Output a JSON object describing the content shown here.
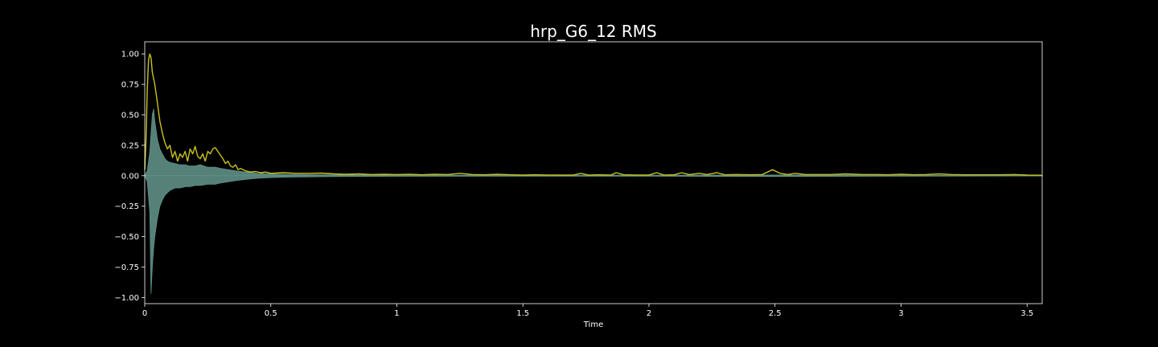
{
  "chart_data": {
    "type": "line",
    "title": "hrp_G6_12 RMS",
    "xlabel": "Time",
    "ylabel": "",
    "xlim": [
      0,
      3.56
    ],
    "ylim": [
      -1.05,
      1.1
    ],
    "x_ticks": [
      {
        "value": 0,
        "label": "0"
      },
      {
        "value": 0.5,
        "label": "0.5"
      },
      {
        "value": 1,
        "label": "1"
      },
      {
        "value": 1.5,
        "label": "1.5"
      },
      {
        "value": 2,
        "label": "2"
      },
      {
        "value": 2.5,
        "label": "2.5"
      },
      {
        "value": 3,
        "label": "3"
      },
      {
        "value": 3.5,
        "label": "3.5"
      }
    ],
    "y_ticks": [
      {
        "value": 1.0,
        "label": "1.00"
      },
      {
        "value": 0.75,
        "label": "0.75"
      },
      {
        "value": 0.5,
        "label": "0.50"
      },
      {
        "value": 0.25,
        "label": "0.25"
      },
      {
        "value": 0.0,
        "label": "0.00"
      },
      {
        "value": -0.25,
        "label": "−0.25"
      },
      {
        "value": -0.5,
        "label": "−0.50"
      },
      {
        "value": -0.75,
        "label": "−0.75"
      },
      {
        "value": -1.0,
        "label": "−1.00"
      }
    ],
    "grid": false,
    "series": [
      {
        "kind": "waveform-envelope",
        "color": "#5f8f86",
        "x": [
          0,
          0.01,
          0.02,
          0.025,
          0.03,
          0.035,
          0.04,
          0.05,
          0.06,
          0.07,
          0.08,
          0.09,
          0.1,
          0.12,
          0.14,
          0.16,
          0.18,
          0.2,
          0.22,
          0.25,
          0.28,
          0.3,
          0.33,
          0.36,
          0.4,
          0.45,
          0.5,
          0.55,
          0.6,
          0.7,
          0.8,
          1.0,
          1.5,
          2.0,
          2.5,
          3.0,
          3.56
        ],
        "upper": [
          0,
          0.04,
          0.2,
          0.35,
          0.5,
          0.55,
          0.45,
          0.3,
          0.22,
          0.18,
          0.14,
          0.12,
          0.11,
          0.1,
          0.09,
          0.09,
          0.08,
          0.08,
          0.09,
          0.07,
          0.07,
          0.06,
          0.05,
          0.04,
          0.03,
          0.02,
          0.015,
          0.012,
          0.01,
          0.008,
          0.006,
          0.005,
          0.004,
          0.004,
          0.006,
          0.004,
          0.002
        ],
        "lower": [
          0,
          -0.05,
          -0.3,
          -0.97,
          -0.75,
          -0.6,
          -0.5,
          -0.35,
          -0.25,
          -0.2,
          -0.16,
          -0.14,
          -0.12,
          -0.1,
          -0.1,
          -0.09,
          -0.09,
          -0.08,
          -0.08,
          -0.07,
          -0.07,
          -0.06,
          -0.05,
          -0.04,
          -0.03,
          -0.02,
          -0.015,
          -0.012,
          -0.01,
          -0.008,
          -0.006,
          -0.005,
          -0.004,
          -0.004,
          -0.006,
          -0.004,
          -0.002
        ]
      },
      {
        "kind": "rms-line",
        "color": "#c8c21e",
        "x": [
          0,
          0.005,
          0.01,
          0.015,
          0.02,
          0.025,
          0.03,
          0.04,
          0.05,
          0.06,
          0.07,
          0.08,
          0.09,
          0.1,
          0.11,
          0.12,
          0.13,
          0.14,
          0.15,
          0.16,
          0.17,
          0.18,
          0.19,
          0.2,
          0.21,
          0.22,
          0.23,
          0.24,
          0.25,
          0.26,
          0.27,
          0.28,
          0.29,
          0.3,
          0.31,
          0.32,
          0.33,
          0.34,
          0.35,
          0.36,
          0.37,
          0.38,
          0.39,
          0.4,
          0.42,
          0.44,
          0.46,
          0.48,
          0.5,
          0.55,
          0.6,
          0.65,
          0.7,
          0.75,
          0.8,
          0.85,
          0.9,
          0.95,
          1.0,
          1.05,
          1.1,
          1.15,
          1.2,
          1.25,
          1.3,
          1.35,
          1.4,
          1.45,
          1.5,
          1.55,
          1.6,
          1.65,
          1.7,
          1.73,
          1.76,
          1.8,
          1.85,
          1.87,
          1.9,
          1.95,
          2.0,
          2.03,
          2.06,
          2.1,
          2.13,
          2.16,
          2.2,
          2.23,
          2.27,
          2.3,
          2.35,
          2.4,
          2.45,
          2.47,
          2.49,
          2.52,
          2.55,
          2.58,
          2.62,
          2.67,
          2.72,
          2.78,
          2.85,
          2.9,
          2.95,
          3.0,
          3.05,
          3.1,
          3.15,
          3.2,
          3.25,
          3.3,
          3.35,
          3.4,
          3.45,
          3.5,
          3.56
        ],
        "y": [
          0.05,
          0.3,
          0.7,
          0.95,
          1.0,
          0.97,
          0.85,
          0.75,
          0.6,
          0.45,
          0.35,
          0.27,
          0.22,
          0.25,
          0.15,
          0.2,
          0.12,
          0.18,
          0.15,
          0.2,
          0.12,
          0.22,
          0.18,
          0.24,
          0.16,
          0.14,
          0.18,
          0.12,
          0.2,
          0.18,
          0.22,
          0.23,
          0.2,
          0.17,
          0.14,
          0.1,
          0.12,
          0.08,
          0.07,
          0.09,
          0.05,
          0.06,
          0.05,
          0.04,
          0.03,
          0.035,
          0.025,
          0.03,
          0.02,
          0.025,
          0.02,
          0.02,
          0.022,
          0.015,
          0.012,
          0.015,
          0.01,
          0.012,
          0.01,
          0.012,
          0.008,
          0.012,
          0.01,
          0.02,
          0.01,
          0.008,
          0.012,
          0.008,
          0.005,
          0.008,
          0.006,
          0.005,
          0.006,
          0.02,
          0.006,
          0.008,
          0.006,
          0.025,
          0.008,
          0.006,
          0.006,
          0.025,
          0.006,
          0.008,
          0.025,
          0.01,
          0.02,
          0.01,
          0.025,
          0.008,
          0.01,
          0.008,
          0.01,
          0.03,
          0.05,
          0.02,
          0.01,
          0.02,
          0.01,
          0.01,
          0.01,
          0.015,
          0.01,
          0.01,
          0.008,
          0.012,
          0.008,
          0.01,
          0.015,
          0.01,
          0.008,
          0.008,
          0.008,
          0.008,
          0.01,
          0.006,
          0.004
        ]
      }
    ]
  }
}
